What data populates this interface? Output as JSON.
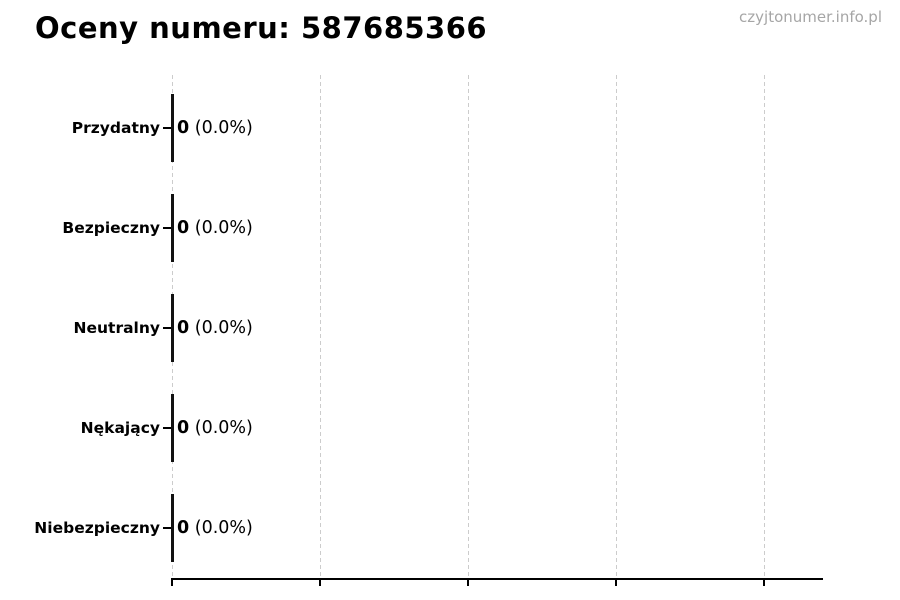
{
  "header": {
    "title": "Oceny numeru: 587685366",
    "watermark": "czyjtonumer.info.pl"
  },
  "chart_data": {
    "type": "bar",
    "orientation": "horizontal",
    "title": "Oceny numeru: 587685366",
    "categories": [
      "Przydatny",
      "Bezpieczny",
      "Neutralny",
      "Nękający",
      "Niebezpieczny"
    ],
    "values": [
      0,
      0,
      0,
      0,
      0
    ],
    "value_labels": [
      "0",
      "0",
      "0",
      "0",
      "0"
    ],
    "percent_labels": [
      "(0.0%)",
      "(0.0%)",
      "(0.0%)",
      "(0.0%)",
      "(0.0%)"
    ],
    "xlabel": "",
    "ylabel": "",
    "x_tick_labels": [
      "",
      "",
      "",
      "",
      ""
    ],
    "x_gridline_count": 5,
    "grid": "dashed-vertical",
    "legend": "none",
    "bar_color": "#111111"
  },
  "colors": {
    "text": "#000000",
    "watermark": "#a6a6a6",
    "gridline": "#cccccc",
    "axis": "#000000",
    "bar_edge": "#111111"
  }
}
